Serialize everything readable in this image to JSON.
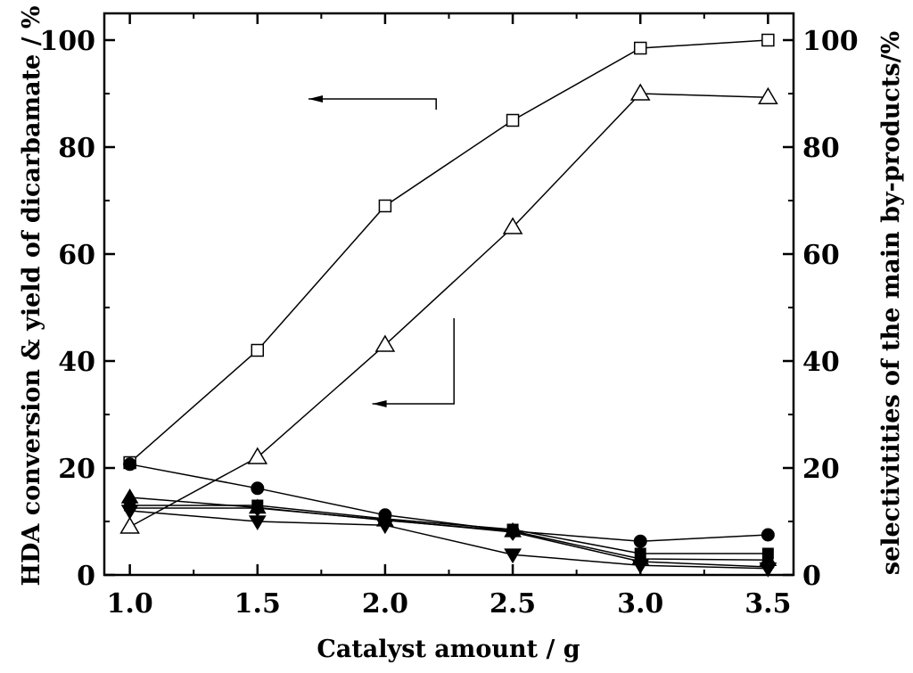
{
  "chart_data": {
    "type": "line",
    "title": "",
    "xlabel": "Catalyst amount / g",
    "ylabel": "HDA conversion & yield of dicarbamate / %",
    "y2label": "selectivitities of the main by-products/%",
    "xlim": [
      0.9,
      3.6
    ],
    "ylim": [
      0,
      105
    ],
    "y2lim": [
      0,
      105
    ],
    "x_ticks": [
      "1.0",
      "1.5",
      "2.0",
      "2.5",
      "3.0",
      "3.5"
    ],
    "y_ticks": [
      "0",
      "20",
      "40",
      "60",
      "80",
      "100"
    ],
    "y2_ticks": [
      "0",
      "20",
      "40",
      "60",
      "80",
      "100"
    ],
    "grid": false,
    "legend": "none",
    "x": [
      1.0,
      1.5,
      2.0,
      2.5,
      3.0,
      3.5
    ],
    "series": [
      {
        "marker": "open-square",
        "axis": "left",
        "values": [
          21,
          42,
          69,
          85,
          98.5,
          100
        ]
      },
      {
        "marker": "open-triangle-up",
        "axis": "left",
        "values": [
          9,
          22,
          43,
          65,
          90,
          89.3
        ]
      },
      {
        "marker": "filled-circle",
        "axis": "right",
        "values": [
          20.7,
          16.2,
          11.2,
          8.2,
          6.3,
          7.5
        ]
      },
      {
        "marker": "filled-square",
        "axis": "right",
        "values": [
          13,
          13,
          10.5,
          8.5,
          4,
          4
        ]
      },
      {
        "marker": "filled-triangle-up",
        "axis": "right",
        "values": [
          14.5,
          12.6,
          10.2,
          8.2,
          3,
          2.8
        ]
      },
      {
        "marker": "filled-diamond",
        "axis": "right",
        "values": [
          12.5,
          12.5,
          10.3,
          8,
          2.5,
          1.5
        ]
      },
      {
        "marker": "filled-triangle-down",
        "axis": "right",
        "values": [
          12,
          10,
          9.3,
          3.8,
          1.8,
          1.2
        ]
      }
    ],
    "annotations": [
      {
        "type": "arrow",
        "points": [
          [
            2.2,
            87
          ],
          [
            2.2,
            89
          ],
          [
            1.7,
            89
          ]
        ],
        "direction": "left",
        "meaning": "left-axis series"
      },
      {
        "type": "arrow",
        "points": [
          [
            2.27,
            48
          ],
          [
            2.27,
            32
          ],
          [
            1.95,
            32
          ]
        ],
        "direction": "left",
        "meaning": "left-axis series"
      }
    ]
  }
}
